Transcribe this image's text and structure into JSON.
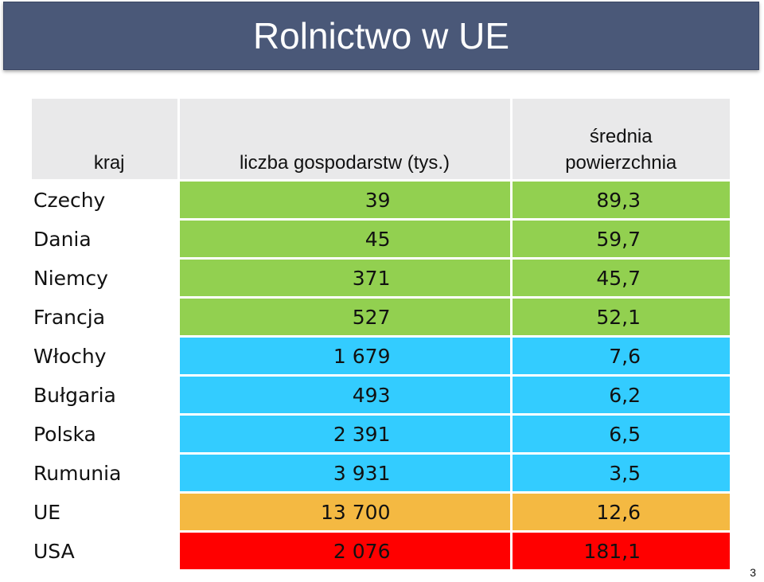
{
  "title": "Rolnictwo w UE",
  "table": {
    "headers": {
      "country": "kraj",
      "farms": "liczba gospodarstw (tys.)",
      "area_line1": "średnia",
      "area_line2": "powierzchnia"
    },
    "rows": [
      {
        "country": "Czechy",
        "farms": "39",
        "area": "89,3",
        "color": "#92d050"
      },
      {
        "country": "Dania",
        "farms": "45",
        "area": "59,7",
        "color": "#92d050"
      },
      {
        "country": "Niemcy",
        "farms": "371",
        "area": "45,7",
        "color": "#92d050"
      },
      {
        "country": "Francja",
        "farms": "527",
        "area": "52,1",
        "color": "#92d050"
      },
      {
        "country": "Włochy",
        "farms": "1 679",
        "area": "7,6",
        "color": "#33ccff"
      },
      {
        "country": "Bułgaria",
        "farms": "493",
        "area": "6,2",
        "color": "#33ccff"
      },
      {
        "country": "Polska",
        "farms": "2 391",
        "area": "6,5",
        "color": "#33ccff"
      },
      {
        "country": "Rumunia",
        "farms": "3 931",
        "area": "3,5",
        "color": "#33ccff"
      },
      {
        "country": "UE",
        "farms": "13 700",
        "area": "12,6",
        "color": "#f4b942"
      },
      {
        "country": "USA",
        "farms": "2 076",
        "area": "181,1",
        "color": "#ff0000"
      }
    ]
  },
  "page_number": "3"
}
